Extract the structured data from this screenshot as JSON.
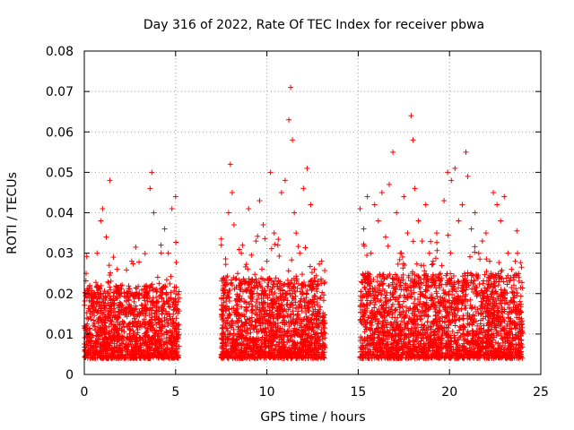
{
  "chart_data": {
    "type": "scatter",
    "title": "Day 316 of 2022, Rate Of TEC Index for receiver pbwa",
    "xlabel": "GPS time / hours",
    "ylabel": "ROTI / TECUs",
    "xlim": [
      0,
      25
    ],
    "ylim": [
      0,
      0.08
    ],
    "x_ticks": [
      0,
      5,
      10,
      15,
      20,
      25
    ],
    "y_ticks": [
      0,
      0.01,
      0.02,
      0.03,
      0.04,
      0.05,
      0.06,
      0.07,
      0.08
    ],
    "x_tick_labels": [
      "0",
      "5",
      "10",
      "15",
      "20",
      "25"
    ],
    "y_tick_labels": [
      "0",
      "0.01",
      "0.02",
      "0.03",
      "0.04",
      "0.05",
      "0.06",
      "0.07",
      "0.08"
    ],
    "grid": true,
    "marker": "+",
    "color": "#ff0000",
    "series": [
      {
        "points": [
          [
            0.0,
            0.012
          ],
          [
            0.1,
            0.025
          ],
          [
            0.2,
            0.008
          ],
          [
            0.3,
            0.022
          ],
          [
            0.4,
            0.015
          ],
          [
            0.5,
            0.018
          ],
          [
            0.6,
            0.011
          ],
          [
            0.7,
            0.03
          ],
          [
            0.8,
            0.014
          ],
          [
            0.9,
            0.038
          ],
          [
            1.0,
            0.041
          ],
          [
            1.1,
            0.013
          ],
          [
            1.2,
            0.034
          ],
          [
            1.3,
            0.02
          ],
          [
            1.4,
            0.048
          ],
          [
            1.5,
            0.017
          ],
          [
            1.6,
            0.029
          ],
          [
            1.7,
            0.012
          ],
          [
            1.8,
            0.026
          ],
          [
            1.9,
            0.01
          ],
          [
            2.0,
            0.022
          ],
          [
            2.2,
            0.016
          ],
          [
            2.4,
            0.019
          ],
          [
            2.6,
            0.028
          ],
          [
            2.8,
            0.013
          ],
          [
            3.0,
            0.02
          ],
          [
            3.2,
            0.015
          ],
          [
            3.4,
            0.022
          ],
          [
            3.6,
            0.046
          ],
          [
            3.7,
            0.05
          ],
          [
            3.8,
            0.04
          ],
          [
            4.0,
            0.018
          ],
          [
            4.2,
            0.032
          ],
          [
            4.4,
            0.036
          ],
          [
            4.6,
            0.03
          ],
          [
            4.8,
            0.041
          ],
          [
            5.0,
            0.044
          ],
          [
            5.1,
            0.012
          ],
          [
            7.5,
            0.032
          ],
          [
            7.7,
            0.021
          ],
          [
            7.9,
            0.04
          ],
          [
            8.0,
            0.052
          ],
          [
            8.1,
            0.045
          ],
          [
            8.2,
            0.037
          ],
          [
            8.4,
            0.025
          ],
          [
            8.6,
            0.03
          ],
          [
            8.8,
            0.018
          ],
          [
            9.0,
            0.041
          ],
          [
            9.2,
            0.02
          ],
          [
            9.4,
            0.033
          ],
          [
            9.6,
            0.043
          ],
          [
            9.8,
            0.037
          ],
          [
            10.0,
            0.028
          ],
          [
            10.2,
            0.05
          ],
          [
            10.4,
            0.035
          ],
          [
            10.6,
            0.032
          ],
          [
            10.8,
            0.045
          ],
          [
            11.0,
            0.048
          ],
          [
            11.2,
            0.063
          ],
          [
            11.3,
            0.071
          ],
          [
            11.4,
            0.058
          ],
          [
            11.5,
            0.04
          ],
          [
            11.6,
            0.035
          ],
          [
            11.8,
            0.03
          ],
          [
            12.0,
            0.046
          ],
          [
            12.2,
            0.051
          ],
          [
            12.4,
            0.042
          ],
          [
            12.6,
            0.026
          ],
          [
            12.8,
            0.022
          ],
          [
            13.0,
            0.028
          ],
          [
            15.1,
            0.041
          ],
          [
            15.3,
            0.036
          ],
          [
            15.5,
            0.044
          ],
          [
            15.7,
            0.03
          ],
          [
            15.9,
            0.042
          ],
          [
            16.1,
            0.038
          ],
          [
            16.3,
            0.045
          ],
          [
            16.5,
            0.034
          ],
          [
            16.7,
            0.047
          ],
          [
            16.9,
            0.055
          ],
          [
            17.1,
            0.04
          ],
          [
            17.3,
            0.03
          ],
          [
            17.5,
            0.044
          ],
          [
            17.7,
            0.035
          ],
          [
            17.9,
            0.064
          ],
          [
            18.0,
            0.058
          ],
          [
            18.1,
            0.046
          ],
          [
            18.3,
            0.038
          ],
          [
            18.5,
            0.033
          ],
          [
            18.7,
            0.042
          ],
          [
            18.9,
            0.03
          ],
          [
            19.1,
            0.028
          ],
          [
            19.3,
            0.035
          ],
          [
            19.5,
            0.025
          ],
          [
            19.7,
            0.043
          ],
          [
            19.9,
            0.05
          ],
          [
            20.1,
            0.048
          ],
          [
            20.3,
            0.051
          ],
          [
            20.5,
            0.038
          ],
          [
            20.7,
            0.042
          ],
          [
            20.9,
            0.055
          ],
          [
            21.0,
            0.049
          ],
          [
            21.2,
            0.036
          ],
          [
            21.4,
            0.04
          ],
          [
            21.6,
            0.03
          ],
          [
            21.8,
            0.033
          ],
          [
            22.0,
            0.035
          ],
          [
            22.2,
            0.028
          ],
          [
            22.4,
            0.045
          ],
          [
            22.6,
            0.042
          ],
          [
            22.8,
            0.038
          ],
          [
            23.0,
            0.044
          ],
          [
            23.2,
            0.03
          ],
          [
            23.4,
            0.026
          ],
          [
            23.6,
            0.028
          ],
          [
            23.8,
            0.024
          ]
        ]
      }
    ],
    "bands": [
      {
        "x_start": 0.0,
        "x_end": 5.2,
        "y_min": 0.004,
        "y_max": 0.022
      },
      {
        "x_start": 7.5,
        "x_end": 13.2,
        "y_min": 0.004,
        "y_max": 0.024
      },
      {
        "x_start": 15.1,
        "x_end": 24.0,
        "y_min": 0.004,
        "y_max": 0.025
      }
    ]
  }
}
